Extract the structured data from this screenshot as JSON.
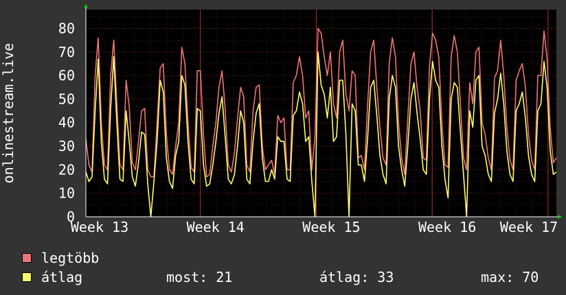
{
  "chart_data": {
    "type": "line",
    "ylabel": "onlinestream.live",
    "ylim": [
      0,
      88
    ],
    "yticks": [
      0,
      10,
      20,
      30,
      40,
      50,
      60,
      70,
      80
    ],
    "xlabels": [
      "Week 13",
      "Week 14",
      "Week 15",
      "Week 16",
      "Week 17"
    ],
    "grid": true,
    "colors": {
      "legtobb": "#f07577",
      "atlag": "#fefe6e",
      "background": "#333333",
      "plot_bg": "#000000",
      "grid": "#802020"
    },
    "series": [
      {
        "name": "legtöbb",
        "values": [
          33,
          22,
          19,
          60,
          76,
          40,
          22,
          20,
          60,
          75,
          48,
          22,
          20,
          58,
          47,
          23,
          20,
          32,
          45,
          46,
          20,
          17,
          17,
          40,
          63,
          65,
          35,
          20,
          18,
          30,
          40,
          72,
          65,
          40,
          21,
          19,
          62,
          62,
          35,
          17,
          18,
          30,
          40,
          55,
          62,
          46,
          22,
          19,
          27,
          42,
          55,
          51,
          22,
          19,
          45,
          55,
          56,
          30,
          20,
          22,
          24,
          18,
          43,
          40,
          42,
          20,
          20,
          57,
          60,
          68,
          60,
          42,
          45,
          20,
          34,
          80,
          78,
          68,
          60,
          70,
          48,
          42,
          70,
          75,
          52,
          45,
          62,
          60,
          25,
          26,
          20,
          47,
          70,
          75,
          55,
          38,
          25,
          22,
          65,
          76,
          68,
          40,
          25,
          18,
          42,
          65,
          70,
          55,
          45,
          25,
          24,
          64,
          78,
          75,
          68,
          40,
          22,
          21,
          68,
          77,
          70,
          48,
          25,
          20,
          57,
          48,
          70,
          72,
          40,
          35,
          25,
          20,
          59,
          62,
          75,
          60,
          38,
          24,
          20,
          58,
          62,
          65,
          55,
          35,
          24,
          20,
          60,
          60,
          79,
          67,
          38,
          23,
          25
        ]
      },
      {
        "name": "átlag",
        "values": [
          19,
          15,
          17,
          45,
          67,
          32,
          16,
          14,
          46,
          68,
          40,
          16,
          15,
          45,
          32,
          17,
          13,
          23,
          36,
          35,
          14,
          0,
          15,
          32,
          58,
          53,
          25,
          15,
          12,
          26,
          32,
          60,
          56,
          32,
          16,
          14,
          46,
          45,
          22,
          13,
          14,
          22,
          32,
          44,
          51,
          34,
          16,
          14,
          18,
          30,
          45,
          40,
          16,
          14,
          32,
          44,
          48,
          25,
          15,
          15,
          20,
          16,
          34,
          32,
          32,
          16,
          15,
          43,
          45,
          53,
          48,
          32,
          34,
          15,
          0,
          70,
          56,
          52,
          42,
          55,
          32,
          34,
          58,
          58,
          35,
          0,
          48,
          45,
          22,
          22,
          15,
          33,
          55,
          58,
          43,
          26,
          18,
          14,
          50,
          60,
          55,
          30,
          20,
          13,
          30,
          50,
          57,
          44,
          33,
          20,
          18,
          50,
          66,
          58,
          55,
          30,
          16,
          8,
          50,
          57,
          55,
          36,
          18,
          0,
          45,
          38,
          58,
          60,
          30,
          26,
          18,
          15,
          44,
          50,
          61,
          48,
          28,
          18,
          15,
          45,
          48,
          53,
          42,
          26,
          18,
          15,
          45,
          48,
          66,
          55,
          28,
          18,
          19
        ]
      }
    ]
  },
  "legend": {
    "max_label": "legtöbb",
    "avg_label": "átlag",
    "now_text": "most: 21",
    "avg_text": "átlag: 33",
    "max_text": "max: 70"
  }
}
